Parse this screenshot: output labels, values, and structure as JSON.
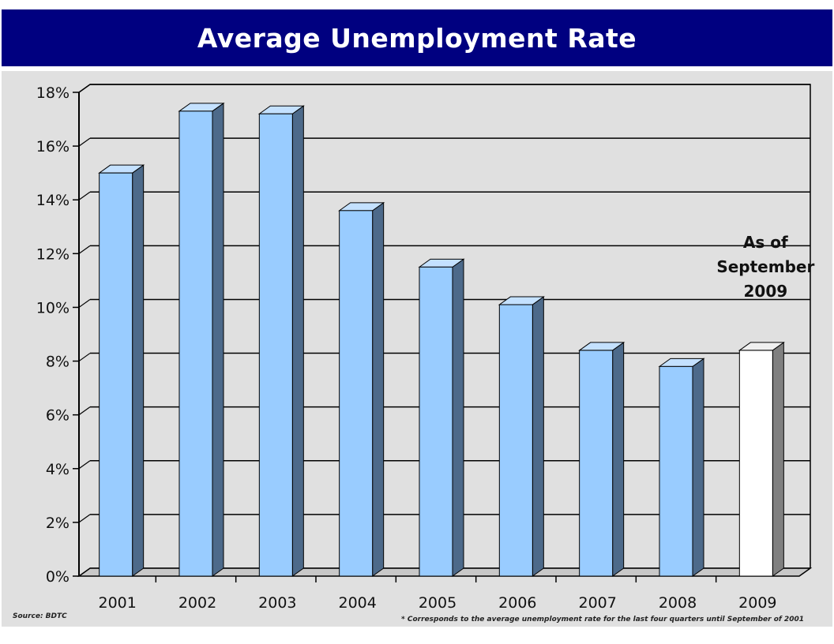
{
  "title": "Average Unemployment Rate",
  "chart_data": {
    "type": "bar",
    "title": "Average Unemployment Rate",
    "xlabel": "",
    "ylabel": "",
    "categories": [
      "2001",
      "2002",
      "2003",
      "2004",
      "2005",
      "2006",
      "2007",
      "2008",
      "2009"
    ],
    "values": [
      15.0,
      17.3,
      17.2,
      13.6,
      11.5,
      10.1,
      8.4,
      7.8,
      8.4
    ],
    "highlight": [
      false,
      false,
      false,
      false,
      false,
      false,
      false,
      false,
      true
    ],
    "ylim": [
      0,
      18
    ],
    "yticks": [
      0,
      2,
      4,
      6,
      8,
      10,
      12,
      14,
      16,
      18
    ],
    "ytick_labels": [
      "0%",
      "2%",
      "4%",
      "6%",
      "8%",
      "10%",
      "12%",
      "14%",
      "16%",
      "18%"
    ],
    "grid": true,
    "annotation": {
      "category": "2009",
      "lines": [
        "As of",
        "September",
        "2009"
      ]
    },
    "colors": {
      "bar_front": "#99ccff",
      "bar_side": "#4d6a8a",
      "bar_top": "#c4e1ff",
      "highlight_front": "#ffffff",
      "highlight_side": "#808080",
      "highlight_top": "#f0f0f0",
      "grid": "#000000",
      "background": "#e0e0e0"
    },
    "footnotes": {
      "source": "Source: BDTC",
      "note": "* Corresponds to the average unemployment rate for the last four quarters until September of 2001"
    }
  }
}
